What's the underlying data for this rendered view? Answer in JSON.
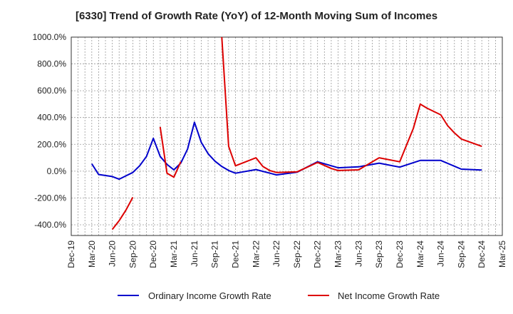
{
  "chart_data": {
    "type": "line",
    "title": "[6330]  Trend of Growth Rate (YoY) of 12-Month Moving Sum of Incomes",
    "xlabel": "",
    "ylabel": "",
    "x_tick_labels": [
      "Dec-19",
      "Mar-20",
      "Jun-20",
      "Sep-20",
      "Dec-20",
      "Mar-21",
      "Jun-21",
      "Sep-21",
      "Dec-21",
      "Mar-22",
      "Jun-22",
      "Sep-22",
      "Dec-22",
      "Mar-23",
      "Jun-23",
      "Sep-23",
      "Dec-23",
      "Mar-24",
      "Jun-24",
      "Sep-24",
      "Dec-24",
      "Mar-25"
    ],
    "y_tick_labels": [
      "1000.0%",
      "800.0%",
      "600.0%",
      "400.0%",
      "200.0%",
      "0.0%",
      "-200.0%",
      "-400.0%"
    ],
    "y_ticks": [
      1000,
      800,
      600,
      400,
      200,
      0,
      -200,
      -400
    ],
    "ylim": [
      -480,
      1000
    ],
    "grid": true,
    "legend_position": "bottom",
    "series": [
      {
        "name": "Ordinary Income Growth Rate",
        "color": "#0000cc",
        "points": [
          [
            "Mar-20",
            55
          ],
          [
            "Apr-20",
            -25
          ],
          [
            "Jun-20",
            -40
          ],
          [
            "Jul-20",
            -60
          ],
          [
            "Aug-20",
            -35
          ],
          [
            "Sep-20",
            -10
          ],
          [
            "Oct-20",
            40
          ],
          [
            "Nov-20",
            110
          ],
          [
            "Dec-20",
            245
          ],
          [
            "Jan-21",
            110
          ],
          [
            "Feb-21",
            50
          ],
          [
            "Mar-21",
            10
          ],
          [
            "Apr-21",
            60
          ],
          [
            "May-21",
            165
          ],
          [
            "Jun-21",
            365
          ],
          [
            "Jul-21",
            215
          ],
          [
            "Aug-21",
            130
          ],
          [
            "Sep-21",
            75
          ],
          [
            "Oct-21",
            35
          ],
          [
            "Nov-21",
            5
          ],
          [
            "Dec-21",
            -15
          ],
          [
            "Mar-22",
            12
          ],
          [
            "Jun-22",
            -28
          ],
          [
            "Sep-22",
            -8
          ],
          [
            "Dec-22",
            70
          ],
          [
            "Mar-23",
            25
          ],
          [
            "Jun-23",
            32
          ],
          [
            "Sep-23",
            60
          ],
          [
            "Dec-23",
            30
          ],
          [
            "Mar-24",
            80
          ],
          [
            "Jun-24",
            80
          ],
          [
            "Sep-24",
            15
          ],
          [
            "Dec-24",
            8
          ]
        ]
      },
      {
        "name": "Net Income Growth Rate",
        "color": "#dd0000",
        "segments": [
          [
            [
              "Jun-20",
              -435
            ],
            [
              "Jul-20",
              -370
            ],
            [
              "Aug-20",
              -290
            ],
            [
              "Sep-20",
              -195
            ]
          ],
          [
            [
              "Jan-21",
              330
            ],
            [
              "Feb-21",
              -15
            ],
            [
              "Mar-21",
              -45
            ],
            [
              "Apr-21",
              70
            ]
          ],
          [
            [
              "Oct-21",
              1000
            ],
            [
              "Nov-21",
              185
            ],
            [
              "Dec-21",
              40
            ],
            [
              "Mar-22",
              100
            ],
            [
              "Apr-22",
              35
            ],
            [
              "May-22",
              5
            ],
            [
              "Jun-22",
              -10
            ],
            [
              "Sep-22",
              -5
            ],
            [
              "Dec-22",
              65
            ],
            [
              "Feb-23",
              20
            ],
            [
              "Mar-23",
              5
            ],
            [
              "Jun-23",
              10
            ],
            [
              "Sep-23",
              100
            ],
            [
              "Dec-23",
              70
            ],
            [
              "Feb-24",
              320
            ],
            [
              "Mar-24",
              500
            ],
            [
              "Apr-24",
              470
            ],
            [
              "Jun-24",
              420
            ],
            [
              "Jul-24",
              340
            ],
            [
              "Aug-24",
              285
            ],
            [
              "Sep-24",
              240
            ],
            [
              "Dec-24",
              185
            ]
          ]
        ]
      }
    ]
  }
}
